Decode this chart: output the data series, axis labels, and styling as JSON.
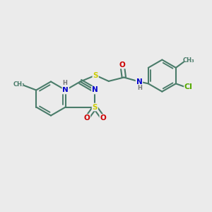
{
  "bg_color": "#ebebeb",
  "bond_color": "#4a7c6a",
  "bond_width": 1.5,
  "atom_colors": {
    "S": "#cccc00",
    "N": "#0000cc",
    "O": "#cc0000",
    "Cl": "#55aa00",
    "H": "#777777",
    "C": "#4a7c6a"
  },
  "fs": 7.5
}
